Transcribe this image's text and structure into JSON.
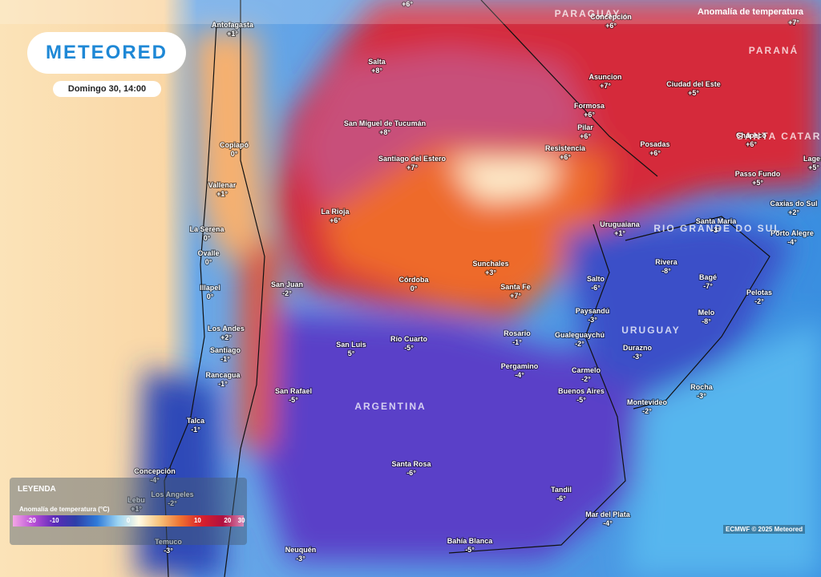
{
  "header": {
    "logo": "METEORED",
    "date": "Domingo 30, 14:00",
    "layer": "Anomalía de temperatura"
  },
  "legend": {
    "title": "LEYENDA",
    "subtitle": "Anomalía de temperatura (°C)",
    "ticks": [
      "-20",
      "-10",
      "0",
      "10",
      "20",
      "30"
    ]
  },
  "credit": "ECMWF © 2025 Meteored",
  "regions": [
    "PARAGUAY",
    "PARANÁ",
    "SANTA CATARINA",
    "RIO GRANDE DO SUL",
    "URUGUAY",
    "ARGENTINA"
  ],
  "extra_labels": [
    "+6°",
    "+7°"
  ],
  "cities": [
    {
      "name": "Antofagasta",
      "value": "+1°"
    },
    {
      "name": "Concepción",
      "value": "+6°"
    },
    {
      "name": "Salta",
      "value": "+8°"
    },
    {
      "name": "Asuncion",
      "value": "+7°"
    },
    {
      "name": "Ciudad del Este",
      "value": "+5°"
    },
    {
      "name": "San Miguel de Tucumán",
      "value": "+8°"
    },
    {
      "name": "Formosa",
      "value": "+6°"
    },
    {
      "name": "Pilar",
      "value": "+6°"
    },
    {
      "name": "Resistencia",
      "value": "+6°"
    },
    {
      "name": "Posadas",
      "value": "+6°"
    },
    {
      "name": "Chapecó",
      "value": "+6°"
    },
    {
      "name": "Copiapó",
      "value": "0°"
    },
    {
      "name": "Santiago del Estero",
      "value": "+7°"
    },
    {
      "name": "Lages",
      "value": "+5°"
    },
    {
      "name": "Vallenar",
      "value": "+1°"
    },
    {
      "name": "Passo Fundo",
      "value": "+5°"
    },
    {
      "name": "La Rioja",
      "value": "+6°"
    },
    {
      "name": "Caxias do Sul",
      "value": "+2°"
    },
    {
      "name": "Santa Maria",
      "value": "-3°"
    },
    {
      "name": "Uruguaiana",
      "value": "+1°"
    },
    {
      "name": "La Serena",
      "value": "0°"
    },
    {
      "name": "Porto Alegre",
      "value": "-4°"
    },
    {
      "name": "Ovalle",
      "value": "0°"
    },
    {
      "name": "Sunchales",
      "value": "+3°"
    },
    {
      "name": "Rivera",
      "value": "-8°"
    },
    {
      "name": "Bagé",
      "value": "-7°"
    },
    {
      "name": "Córdoba",
      "value": "0°"
    },
    {
      "name": "Salto",
      "value": "-6°"
    },
    {
      "name": "San Juan",
      "value": "-2°"
    },
    {
      "name": "Illapel",
      "value": "0°"
    },
    {
      "name": "Santa Fe",
      "value": "+7°"
    },
    {
      "name": "Pelotas",
      "value": "-2°"
    },
    {
      "name": "Paysandú",
      "value": "-3°"
    },
    {
      "name": "Melo",
      "value": "-8°"
    },
    {
      "name": "Los Andes",
      "value": "+2°"
    },
    {
      "name": "Rosario",
      "value": "-1°"
    },
    {
      "name": "Gualeguaychú",
      "value": "-2°"
    },
    {
      "name": "San Luis",
      "value": "5°"
    },
    {
      "name": "Río Cuarto",
      "value": "-5°"
    },
    {
      "name": "Santiago",
      "value": "-1°"
    },
    {
      "name": "Durazno",
      "value": "-3°"
    },
    {
      "name": "Pergamino",
      "value": "-4°"
    },
    {
      "name": "Carmelo",
      "value": "-2°"
    },
    {
      "name": "Rancagua",
      "value": "-1°"
    },
    {
      "name": "Rocha",
      "value": "-3°"
    },
    {
      "name": "Buenos Aires",
      "value": "-5°"
    },
    {
      "name": "San Rafael",
      "value": "-5°"
    },
    {
      "name": "Montevideo",
      "value": "-2°"
    },
    {
      "name": "Talca",
      "value": "-1°"
    },
    {
      "name": "Santa Rosa",
      "value": "-6°"
    },
    {
      "name": "Concepción",
      "value": "-4°"
    },
    {
      "name": "Lebu",
      "value": "+1°"
    },
    {
      "name": "Los Angeles",
      "value": "-2°"
    },
    {
      "name": "Tandil",
      "value": "-6°"
    },
    {
      "name": "Mar del Plata",
      "value": "-4°"
    },
    {
      "name": "Temuco",
      "value": "-3°"
    },
    {
      "name": "Bahía Blanca",
      "value": "-5°"
    },
    {
      "name": "Neuquén",
      "value": "-3°"
    }
  ]
}
